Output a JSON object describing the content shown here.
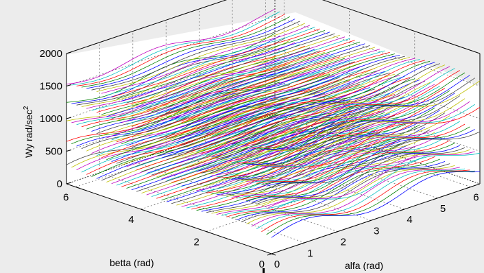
{
  "chart_data": {
    "type": "line",
    "title": "",
    "xlabel": "alfa (rad)",
    "ylabel": "betta (rad)",
    "zlabel": "Wy rad/sec",
    "zlabel_superscript": "2",
    "x_ticks": [
      "0",
      "1",
      "2",
      "3",
      "4",
      "5",
      "6"
    ],
    "y_ticks": [
      "0",
      "2",
      "4",
      "6"
    ],
    "z_ticks": [
      "0",
      "500",
      "1000",
      "1500",
      "2000"
    ],
    "xlim": [
      0,
      6.28
    ],
    "ylim": [
      0,
      6.28
    ],
    "zlim": [
      0,
      2000
    ],
    "grid": true,
    "series_colors": [
      "#0000ff",
      "#008000",
      "#ff0000",
      "#00bfbf",
      "#bf00bf",
      "#bfbf00",
      "#404040"
    ],
    "layer_levels": [
      250,
      580,
      900,
      1220,
      1550
    ],
    "layer_amplitude": 160,
    "lines_per_layer": 42
  }
}
